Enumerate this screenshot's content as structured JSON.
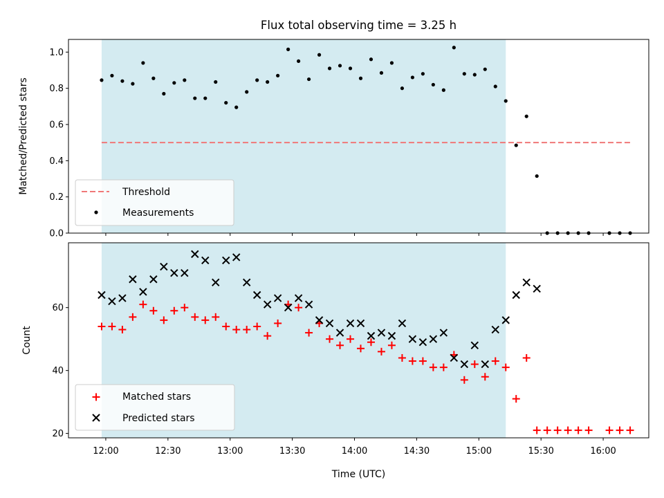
{
  "chart_data": [
    {
      "type": "scatter",
      "title": "Flux total observing time = 3.25 h",
      "xlabel": "",
      "ylabel": "Matched/Predicted stars",
      "ylim": [
        0,
        1.07
      ],
      "yticks": [
        0.0,
        0.2,
        0.4,
        0.6,
        0.8,
        1.0
      ],
      "ytick_labels": [
        "0.0",
        "0.2",
        "0.4",
        "0.6",
        "0.8",
        "1.0"
      ],
      "grid": false,
      "legend_position": "lower-left",
      "shaded_interval": {
        "start": "11:58",
        "end": "15:13",
        "color": "#d4ebf1"
      },
      "threshold": {
        "name": "Threshold",
        "value": 0.5,
        "x_start": "11:58",
        "x_end": "16:13",
        "color": "#f07878",
        "style": "dashed"
      },
      "series": [
        {
          "name": "Measurements",
          "color": "#000000",
          "marker": "dot",
          "x": [
            "11:58",
            "12:03",
            "12:08",
            "12:13",
            "12:18",
            "12:23",
            "12:28",
            "12:33",
            "12:38",
            "12:43",
            "12:48",
            "12:53",
            "12:58",
            "13:03",
            "13:08",
            "13:13",
            "13:18",
            "13:23",
            "13:28",
            "13:33",
            "13:38",
            "13:43",
            "13:48",
            "13:53",
            "13:58",
            "14:03",
            "14:08",
            "14:13",
            "14:18",
            "14:23",
            "14:28",
            "14:33",
            "14:38",
            "14:43",
            "14:48",
            "14:53",
            "14:58",
            "15:03",
            "15:08",
            "15:13",
            "15:18",
            "15:23",
            "15:28",
            "15:33",
            "15:38",
            "15:43",
            "15:48",
            "15:53",
            "16:03",
            "16:08",
            "16:13"
          ],
          "y": [
            0.845,
            0.87,
            0.84,
            0.825,
            0.94,
            0.855,
            0.77,
            0.83,
            0.845,
            0.745,
            0.745,
            0.835,
            0.72,
            0.695,
            0.78,
            0.845,
            0.835,
            0.87,
            1.015,
            0.95,
            0.85,
            0.985,
            0.91,
            0.925,
            0.91,
            0.855,
            0.96,
            0.885,
            0.94,
            0.8,
            0.86,
            0.88,
            0.82,
            0.79,
            1.025,
            0.88,
            0.875,
            0.905,
            0.81,
            0.73,
            0.485,
            0.645,
            0.315,
            0.0,
            0.0,
            0.0,
            0.0,
            0.0,
            0.0,
            0.0,
            0.0
          ]
        }
      ]
    },
    {
      "type": "scatter",
      "title": "",
      "xlabel": "Time (UTC)",
      "ylabel": "Count",
      "xlim": [
        "11:42",
        "16:22"
      ],
      "xticks": [
        "12:00",
        "12:30",
        "13:00",
        "13:30",
        "14:00",
        "14:30",
        "15:00",
        "15:30",
        "16:00"
      ],
      "xtick_labels": [
        "12:00",
        "12:30",
        "13:00",
        "13:30",
        "14:00",
        "14:30",
        "15:00",
        "15:30",
        "16:00"
      ],
      "ylim": [
        18.6,
        80.6
      ],
      "yticks": [
        20,
        40,
        60
      ],
      "ytick_labels": [
        "20",
        "40",
        "60"
      ],
      "grid": false,
      "legend_position": "lower-left",
      "shaded_interval": {
        "start": "11:58",
        "end": "15:13",
        "color": "#d4ebf1"
      },
      "series": [
        {
          "name": "Matched stars",
          "color": "#ff0000",
          "marker": "plus",
          "x": [
            "11:58",
            "12:03",
            "12:08",
            "12:13",
            "12:18",
            "12:23",
            "12:28",
            "12:33",
            "12:38",
            "12:43",
            "12:48",
            "12:53",
            "12:58",
            "13:03",
            "13:08",
            "13:13",
            "13:18",
            "13:23",
            "13:28",
            "13:33",
            "13:38",
            "13:43",
            "13:48",
            "13:53",
            "13:58",
            "14:03",
            "14:08",
            "14:13",
            "14:18",
            "14:23",
            "14:28",
            "14:33",
            "14:38",
            "14:43",
            "14:48",
            "14:53",
            "14:58",
            "15:03",
            "15:08",
            "15:13",
            "15:18",
            "15:23",
            "15:28",
            "15:33",
            "15:38",
            "15:43",
            "15:48",
            "15:53",
            "16:03",
            "16:08",
            "16:13"
          ],
          "y": [
            54,
            54,
            53,
            57,
            61,
            59,
            56,
            59,
            60,
            57,
            56,
            57,
            54,
            53,
            53,
            54,
            51,
            55,
            61,
            60,
            52,
            55,
            50,
            48,
            50,
            47,
            49,
            46,
            48,
            44,
            43,
            43,
            41,
            41,
            45,
            37,
            42,
            38,
            43,
            41,
            31,
            44,
            21,
            21,
            21,
            21,
            21,
            21,
            21,
            21,
            21
          ]
        },
        {
          "name": "Predicted stars",
          "color": "#000000",
          "marker": "x",
          "x": [
            "11:58",
            "12:03",
            "12:08",
            "12:13",
            "12:18",
            "12:23",
            "12:28",
            "12:33",
            "12:38",
            "12:43",
            "12:48",
            "12:53",
            "12:58",
            "13:03",
            "13:08",
            "13:13",
            "13:18",
            "13:23",
            "13:28",
            "13:33",
            "13:38",
            "13:43",
            "13:48",
            "13:53",
            "13:58",
            "14:03",
            "14:08",
            "14:13",
            "14:18",
            "14:23",
            "14:28",
            "14:33",
            "14:38",
            "14:43",
            "14:48",
            "14:53",
            "14:58",
            "15:03",
            "15:08",
            "15:13",
            "15:18",
            "15:23",
            "15:28"
          ],
          "y": [
            64,
            62,
            63,
            69,
            65,
            69,
            73,
            71,
            71,
            77,
            75,
            68,
            75,
            76,
            68,
            64,
            61,
            63,
            60,
            63,
            61,
            56,
            55,
            52,
            55,
            55,
            51,
            52,
            51,
            55,
            50,
            49,
            50,
            52,
            44,
            42,
            48,
            42,
            53,
            56,
            64,
            68,
            66
          ]
        }
      ]
    }
  ]
}
